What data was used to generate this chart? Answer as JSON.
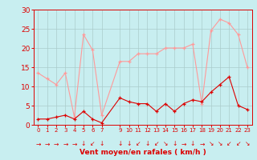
{
  "x": [
    0,
    1,
    2,
    3,
    4,
    5,
    6,
    7,
    9,
    10,
    11,
    12,
    13,
    14,
    15,
    16,
    17,
    18,
    19,
    20,
    21,
    22,
    23
  ],
  "rafales": [
    13.5,
    12.0,
    10.5,
    13.5,
    2.0,
    23.5,
    19.5,
    2.5,
    16.5,
    16.5,
    18.5,
    18.5,
    18.5,
    20.0,
    20.0,
    20.0,
    21.0,
    5.5,
    24.5,
    27.5,
    26.5,
    23.5,
    15.0
  ],
  "moyen": [
    1.5,
    1.5,
    2.0,
    2.5,
    1.5,
    3.5,
    1.5,
    0.5,
    7.0,
    6.0,
    5.5,
    5.5,
    3.5,
    5.5,
    3.5,
    5.5,
    6.5,
    6.0,
    8.5,
    10.5,
    12.5,
    5.0,
    4.0
  ],
  "bg_color": "#c8eef0",
  "line_color_rafales": "#ff9999",
  "line_color_moyen": "#dd0000",
  "grid_color": "#aacccc",
  "xlabel": "Vent moyen/en rafales ( km/h )",
  "ylim": [
    0,
    30
  ],
  "yticks": [
    0,
    5,
    10,
    15,
    20,
    25,
    30
  ],
  "xlim_min": -0.5,
  "xlim_max": 23.5,
  "xtick_positions": [
    0,
    1,
    2,
    3,
    4,
    5,
    6,
    7,
    9,
    10,
    11,
    12,
    13,
    14,
    15,
    16,
    17,
    18,
    19,
    20,
    21,
    22,
    23
  ],
  "xtick_labels": [
    "0",
    "1",
    "2",
    "3",
    "4",
    "5",
    "6",
    "7",
    "9",
    "10",
    "11",
    "12",
    "13",
    "14",
    "15",
    "16",
    "17",
    "18",
    "19",
    "20",
    "21",
    "22",
    "23"
  ],
  "axis_color": "#dd0000",
  "tick_color": "#dd0000",
  "label_color": "#dd0000",
  "arrow_chars": [
    "→",
    "→",
    "→",
    "→",
    "→",
    "↓",
    "↙",
    "↓",
    "↓",
    "↓",
    "↙",
    "↓",
    "↙",
    "↘",
    "↓",
    "→",
    "↓",
    "→",
    "↘",
    "↘",
    "↙",
    "↙",
    "↘"
  ]
}
